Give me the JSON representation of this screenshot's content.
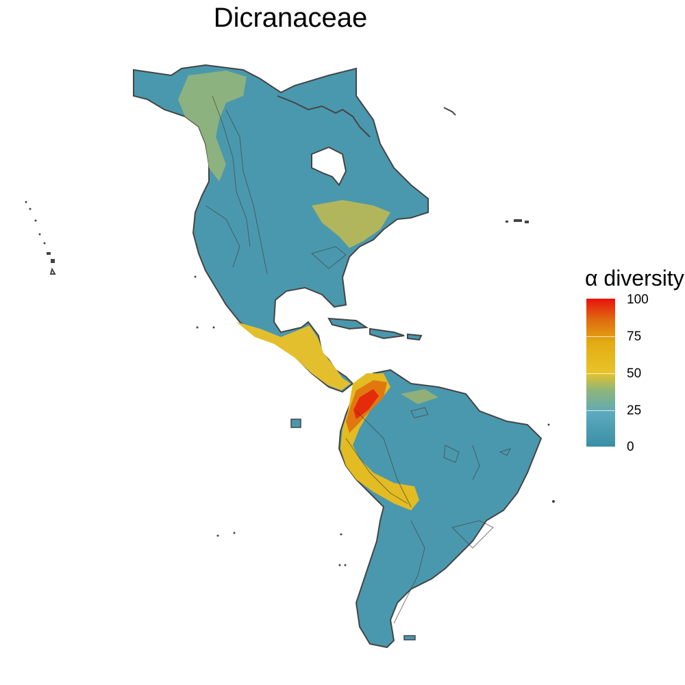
{
  "title": "Dicranaceae",
  "legend": {
    "title": "α diversity",
    "ticks": [
      "100",
      "75",
      "50",
      "25",
      "0"
    ],
    "min": 0,
    "max": 100,
    "colors": [
      "#3a8ea3",
      "#5ba9bf",
      "#8fb57a",
      "#e8c32a",
      "#e2ad12",
      "#e06a10",
      "#e8110c"
    ]
  },
  "map_style": {
    "land_base": "#4a98ad",
    "outline": "#444444",
    "background": "#ffffff"
  }
}
